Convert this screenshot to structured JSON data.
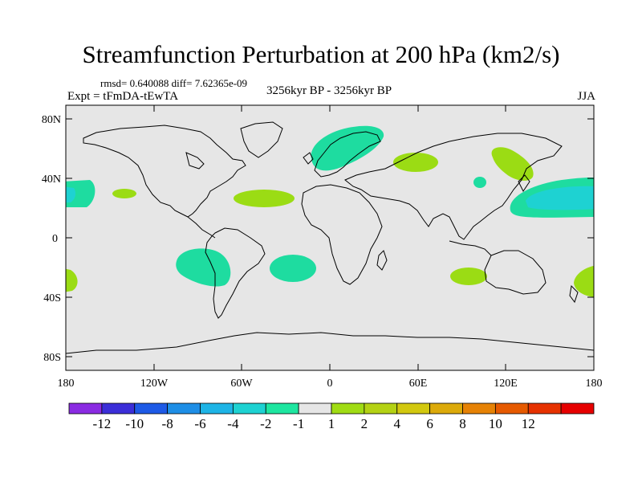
{
  "title": "Streamfunction Perturbation at 200 hPa (km2/s)",
  "stats": "rmsd= 0.640088 diff= 7.62365e-09",
  "left_label": "Expt = tFmDA-tEwTA",
  "center_label": "3256kyr BP - 3256kyr BP",
  "right_label": "JJA",
  "lat_ticks": [
    "80N",
    "40N",
    "0",
    "40S",
    "80S"
  ],
  "lon_ticks": [
    "180",
    "120W",
    "60W",
    "0",
    "60E",
    "120E",
    "180"
  ],
  "colorbar": {
    "colors": [
      "#8a2be2",
      "#3b2ed8",
      "#1e5ae6",
      "#1e8ee6",
      "#1eb4e6",
      "#1ed2d2",
      "#1ee6a0",
      "#e6e6e6",
      "#a0dc14",
      "#b4d214",
      "#d2c80f",
      "#dcaa0a",
      "#e68205",
      "#e65a00",
      "#e63200",
      "#e60000"
    ],
    "labels": [
      "-12",
      "-10",
      "-8",
      "-6",
      "-4",
      "-2",
      "-1",
      "1",
      "2",
      "4",
      "6",
      "8",
      "10",
      "12"
    ]
  },
  "colors": {
    "ocean_bg": "#e6e6e6",
    "green": "#9bdc14",
    "teal": "#1edca0",
    "cyan": "#1ed2d2"
  }
}
